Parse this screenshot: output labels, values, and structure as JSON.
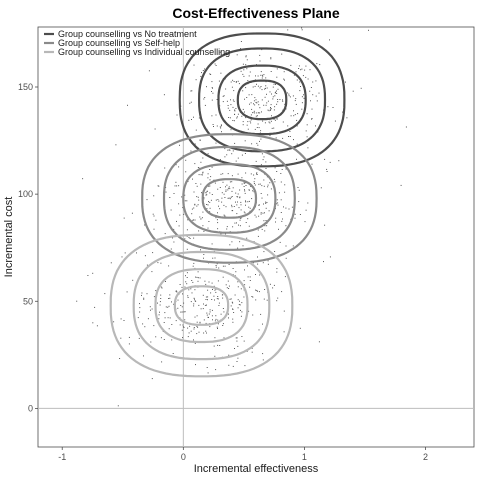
{
  "chart_data": {
    "type": "scatter",
    "title": "Cost-Effectiveness Plane",
    "xlabel": "Incremental effectiveness",
    "ylabel": "Incremental cost",
    "xlim": [
      -1.2,
      2.4
    ],
    "ylim": [
      -18,
      178
    ],
    "xticks": [
      -1,
      0,
      1,
      2
    ],
    "yticks": [
      0,
      50,
      100,
      150
    ],
    "reference_lines": {
      "x": 0,
      "y": 0
    },
    "grid": false,
    "legend_position": "top-left",
    "series": [
      {
        "name": "Group counselling vs No treatment",
        "color": "#4d4d4d",
        "center": [
          0.65,
          144
        ],
        "spread": [
          0.28,
          11
        ],
        "contour_radii": [
          [
            0.2,
            9
          ],
          [
            0.36,
            16
          ],
          [
            0.52,
            24
          ],
          [
            0.68,
            31
          ]
        ],
        "n_points": 380
      },
      {
        "name": "Group counselling vs Self-help",
        "color": "#8a8a8a",
        "center": [
          0.38,
          98
        ],
        "spread": [
          0.28,
          11
        ],
        "contour_radii": [
          [
            0.22,
            9
          ],
          [
            0.38,
            16
          ],
          [
            0.54,
            24
          ],
          [
            0.72,
            30
          ]
        ],
        "n_points": 380
      },
      {
        "name": "Group counselling vs Individual counselling",
        "color": "#b8b8b8",
        "center": [
          0.15,
          48
        ],
        "spread": [
          0.3,
          12
        ],
        "contour_radii": [
          [
            0.22,
            9
          ],
          [
            0.38,
            17
          ],
          [
            0.56,
            25
          ],
          [
            0.75,
            33
          ]
        ],
        "n_points": 380
      }
    ]
  }
}
